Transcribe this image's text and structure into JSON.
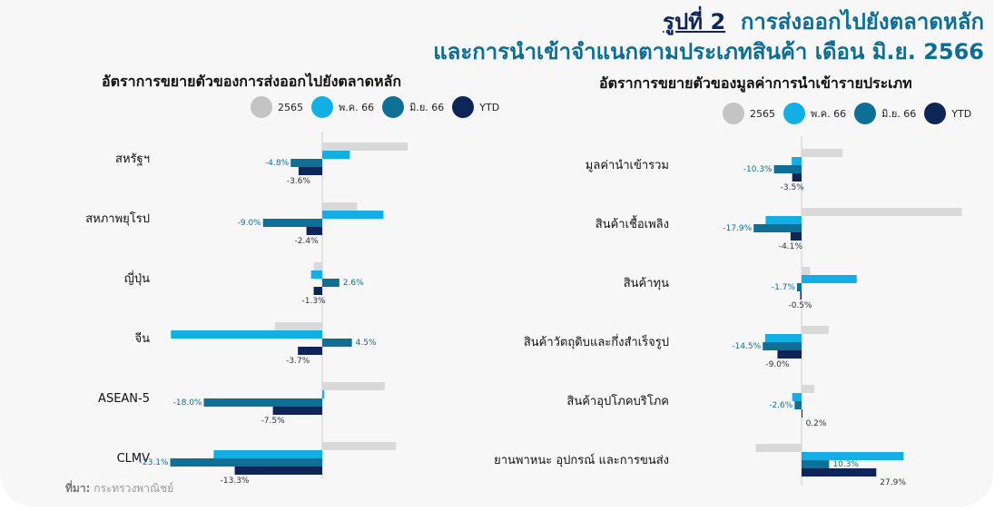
{
  "figure": {
    "number_label": "รูปที่ 2",
    "title_line1": "การส่งออกไปยังตลาดหลัก",
    "title_line2": "และการนำเข้าจำแนกตามประเภทสินค้า เดือน มิ.ย. 2566"
  },
  "source": {
    "label": "ที่มา:",
    "text": "กระทรวงพาณิชย์"
  },
  "chart_data": [
    {
      "type": "bar",
      "orientation": "horizontal",
      "title": "อัตราการขยายตัวของการส่งออกไปยังตลาดหลัก",
      "legend_position": "top",
      "categories": [
        "สหรัฐฯ",
        "สหภาพยุโรป",
        "ญี่ปุ่น",
        "จีน",
        "ASEAN-5",
        "CLMV"
      ],
      "series": [
        {
          "name": "2565",
          "color": "#d9d9d9",
          "values": [
            13.0,
            5.3,
            -1.3,
            -7.2,
            9.5,
            11.2
          ]
        },
        {
          "name": "พ.ค. 66",
          "color": "#14aee6",
          "values": [
            4.2,
            9.3,
            -1.7,
            -23.0,
            0.3,
            -16.5
          ]
        },
        {
          "name": "มิ.ย. 66",
          "color": "#0f6f96",
          "values": [
            -4.8,
            -9.0,
            2.6,
            4.5,
            -18.0,
            -23.1
          ]
        },
        {
          "name": "YTD",
          "color": "#0d2557",
          "values": [
            -3.6,
            -2.4,
            -1.3,
            -3.7,
            -7.5,
            -13.3
          ]
        }
      ],
      "labels": [
        {
          "series": "มิ.ย. 66",
          "values": [
            "-4.8%",
            "-9.0%",
            "2.6%",
            "4.5%",
            "-18.0%",
            "-23.1%"
          ]
        },
        {
          "series": "YTD",
          "values": [
            "-3.6%",
            "-2.4%",
            "-1.3%",
            "-3.7%",
            "-7.5%",
            "-13.3%"
          ]
        }
      ],
      "xlim": [
        -25,
        15
      ]
    },
    {
      "type": "bar",
      "orientation": "horizontal",
      "title": "อัตราการขยายตัวของมูลค่าการนำเข้ารายประเภท",
      "legend_position": "top",
      "categories": [
        "มูลค่านำเข้ารวม",
        "สินค้าเชื้อเพลิง",
        "สินค้าทุน",
        "สินค้าวัตถุดิบและกึ่งสำเร็จรูป",
        "สินค้าอุปโภคบริโภค",
        "ยานพาหนะ อุปกรณ์ และการขนส่ง"
      ],
      "series": [
        {
          "name": "2565",
          "color": "#d9d9d9",
          "values": [
            15.3,
            59.9,
            3.2,
            10.1,
            4.8,
            -17.1
          ]
        },
        {
          "name": "พ.ค. 66",
          "color": "#14aee6",
          "values": [
            -3.7,
            -13.4,
            20.6,
            -13.6,
            -3.5,
            38.1
          ]
        },
        {
          "name": "มิ.ย. 66",
          "color": "#0f6f96",
          "values": [
            -10.3,
            -17.9,
            -1.7,
            -14.5,
            -2.6,
            10.3
          ]
        },
        {
          "name": "YTD",
          "color": "#0d2557",
          "values": [
            -3.5,
            -4.1,
            -0.5,
            -9.0,
            0.2,
            27.9
          ]
        }
      ],
      "labels": [
        {
          "series": "มิ.ย. 66",
          "values": [
            "-10.3%",
            "-17.9%",
            "-1.7%",
            "-14.5%",
            "-2.6%",
            "10.3%"
          ]
        },
        {
          "series": "YTD",
          "values": [
            "-3.5%",
            "-4.1%",
            "-0.5%",
            "-9.0%",
            "0.2%",
            "27.9%"
          ]
        }
      ],
      "xlim": [
        -18,
        60
      ]
    }
  ]
}
